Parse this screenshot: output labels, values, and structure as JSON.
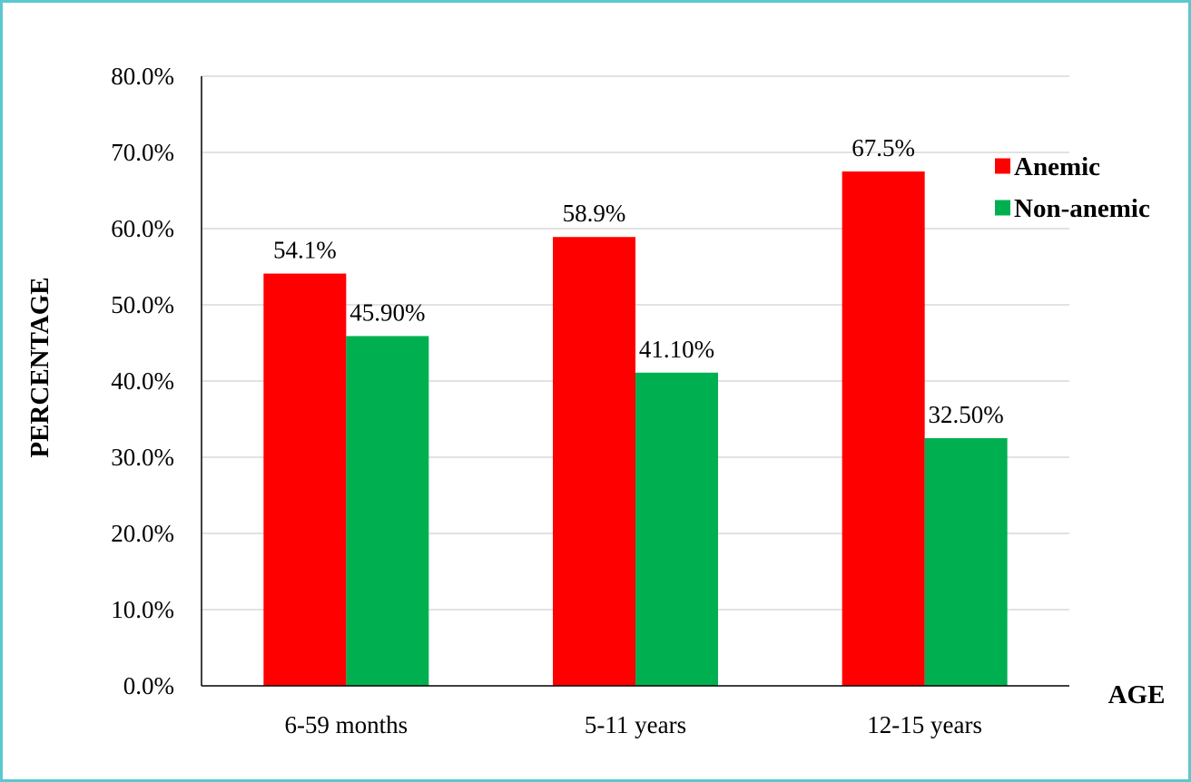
{
  "chart_data": {
    "type": "bar",
    "title": "",
    "xlabel": "AGE",
    "ylabel": "PERCENTAGE",
    "categories": [
      "6-59 months",
      "5-11 years",
      "12-15 years"
    ],
    "series": [
      {
        "name": "Anemic",
        "color": "#ff0000",
        "values": [
          54.1,
          58.9,
          67.5
        ],
        "labels": [
          "54.1%",
          "58.9%",
          "67.5%"
        ]
      },
      {
        "name": "Non-anemic",
        "color": "#00b050",
        "values": [
          45.9,
          41.1,
          32.5
        ],
        "labels": [
          "45.90%",
          "41.10%",
          "32.50%"
        ]
      }
    ],
    "ylim": [
      0,
      80
    ],
    "yticks": [
      "0.0%",
      "10.0%",
      "20.0%",
      "30.0%",
      "40.0%",
      "50.0%",
      "60.0%",
      "70.0%",
      "80.0%"
    ],
    "grid": true,
    "legend_position": "top-right",
    "colors": {
      "frame": "#5bc8cf",
      "gridline": "#d9d9d9",
      "axis": "#000000"
    }
  }
}
